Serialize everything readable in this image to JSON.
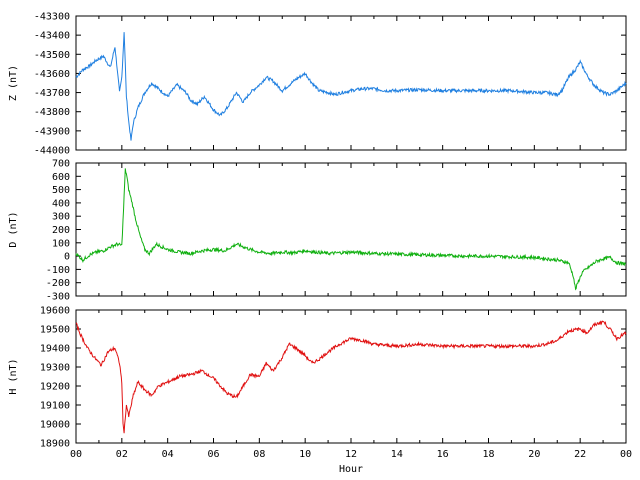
{
  "chart_data": [
    {
      "type": "line",
      "ylabel": "Z (nT)",
      "ylim": [
        -44000,
        -43300
      ],
      "yticks": [
        -43300,
        -43400,
        -43500,
        -43600,
        -43700,
        -43800,
        -43900,
        -44000
      ],
      "color": "#1f7fe0",
      "x_unit": "hour",
      "series": [
        {
          "x": [
            0,
            0.3,
            0.6,
            0.9,
            1.2,
            1.5,
            1.7,
            1.9,
            2.0,
            2.1,
            2.2,
            2.3,
            2.4,
            2.5,
            2.7,
            3.0,
            3.3,
            3.6,
            4.0,
            4.4,
            4.8,
            5.0,
            5.3,
            5.6,
            6.0,
            6.3,
            6.6,
            7.0,
            7.3,
            7.6,
            8.0,
            8.3,
            8.6,
            9.0,
            9.3,
            9.6,
            10.0,
            10.3,
            10.6,
            11.0,
            11.3,
            11.6,
            12.0,
            12.5,
            13.0,
            13.5,
            14.0,
            15.0,
            16.0,
            17.0,
            18.0,
            19.0,
            20.0,
            20.5,
            21.0,
            21.2,
            21.5,
            21.8,
            22.0,
            22.3,
            22.6,
            23.0,
            23.3,
            23.6,
            24.0
          ],
          "y": [
            -43620,
            -43580,
            -43560,
            -43530,
            -43510,
            -43570,
            -43460,
            -43700,
            -43620,
            -43380,
            -43720,
            -43850,
            -43950,
            -43860,
            -43780,
            -43700,
            -43650,
            -43680,
            -43720,
            -43660,
            -43700,
            -43740,
            -43760,
            -43720,
            -43790,
            -43820,
            -43780,
            -43700,
            -43750,
            -43700,
            -43660,
            -43620,
            -43640,
            -43690,
            -43660,
            -43630,
            -43600,
            -43650,
            -43690,
            -43700,
            -43710,
            -43700,
            -43690,
            -43680,
            -43680,
            -43690,
            -43690,
            -43685,
            -43690,
            -43690,
            -43690,
            -43690,
            -43700,
            -43700,
            -43710,
            -43690,
            -43620,
            -43580,
            -43540,
            -43610,
            -43660,
            -43700,
            -43710,
            -43690,
            -43650
          ]
        }
      ]
    },
    {
      "type": "line",
      "ylabel": "D (nT)",
      "ylim": [
        -300,
        700
      ],
      "yticks": [
        700,
        600,
        500,
        400,
        300,
        200,
        100,
        0,
        -100,
        -200,
        -300
      ],
      "color": "#10b010",
      "x_unit": "hour",
      "series": [
        {
          "x": [
            0,
            0.3,
            0.6,
            0.9,
            1.2,
            1.5,
            1.8,
            2.0,
            2.1,
            2.15,
            2.2,
            2.3,
            2.45,
            2.6,
            2.8,
            3.0,
            3.2,
            3.5,
            4.0,
            4.5,
            5.0,
            5.5,
            6.0,
            6.5,
            7.0,
            7.3,
            7.6,
            8.0,
            8.5,
            9.0,
            9.5,
            10.0,
            10.5,
            11.0,
            12.0,
            13.0,
            14.0,
            15.0,
            16.0,
            17.0,
            18.0,
            19.0,
            20.0,
            21.0,
            21.5,
            21.7,
            21.8,
            21.9,
            22.1,
            22.4,
            22.7,
            23.0,
            23.3,
            23.6,
            24.0
          ],
          "y": [
            20,
            -30,
            10,
            30,
            40,
            70,
            90,
            80,
            450,
            650,
            620,
            500,
            400,
            280,
            150,
            50,
            20,
            90,
            50,
            30,
            20,
            40,
            50,
            40,
            90,
            70,
            50,
            30,
            20,
            30,
            25,
            40,
            30,
            20,
            30,
            20,
            15,
            10,
            5,
            0,
            0,
            -5,
            -10,
            -30,
            -50,
            -150,
            -250,
            -200,
            -120,
            -80,
            -40,
            -20,
            -10,
            -50,
            -60
          ]
        }
      ]
    },
    {
      "type": "line",
      "ylabel": "H (nT)",
      "ylim": [
        18900,
        19600
      ],
      "yticks": [
        19600,
        19500,
        19400,
        19300,
        19200,
        19100,
        19000,
        18900
      ],
      "color": "#e01010",
      "x_unit": "hour",
      "xlabel": "Hour",
      "xticks": [
        "00",
        "02",
        "04",
        "06",
        "08",
        "10",
        "12",
        "14",
        "16",
        "18",
        "20",
        "22",
        "00"
      ],
      "xlim": [
        0,
        24
      ],
      "series": [
        {
          "x": [
            0,
            0.2,
            0.5,
            0.8,
            1.1,
            1.4,
            1.7,
            1.9,
            2.0,
            2.05,
            2.1,
            2.2,
            2.3,
            2.5,
            2.7,
            3.0,
            3.3,
            3.6,
            4.0,
            4.5,
            5.0,
            5.5,
            6.0,
            6.3,
            6.6,
            7.0,
            7.3,
            7.6,
            8.0,
            8.3,
            8.6,
            9.0,
            9.3,
            9.6,
            10.0,
            10.3,
            10.6,
            11.0,
            11.5,
            12.0,
            12.5,
            13.0,
            14.0,
            15.0,
            16.0,
            17.0,
            18.0,
            19.0,
            20.0,
            20.5,
            21.0,
            21.5,
            22.0,
            22.3,
            22.6,
            23.0,
            23.3,
            23.6,
            24.0
          ],
          "y": [
            19530,
            19470,
            19400,
            19350,
            19310,
            19380,
            19400,
            19320,
            19220,
            19000,
            18960,
            19100,
            19040,
            19150,
            19220,
            19180,
            19150,
            19200,
            19220,
            19250,
            19260,
            19280,
            19240,
            19200,
            19160,
            19140,
            19200,
            19260,
            19250,
            19320,
            19280,
            19350,
            19420,
            19400,
            19360,
            19320,
            19340,
            19380,
            19420,
            19450,
            19440,
            19420,
            19410,
            19420,
            19410,
            19410,
            19410,
            19410,
            19410,
            19420,
            19440,
            19490,
            19500,
            19480,
            19520,
            19540,
            19500,
            19450,
            19480
          ]
        }
      ]
    }
  ]
}
